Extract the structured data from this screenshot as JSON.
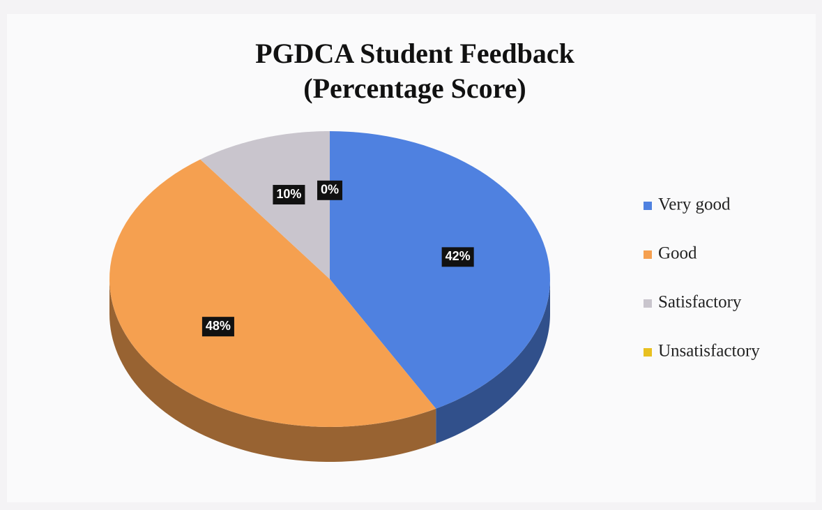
{
  "chart_data": {
    "type": "pie",
    "title": "PGDCA Student Feedback",
    "subtitle": "(Percentage Score)",
    "categories": [
      "Very good",
      "Good",
      "Satisfactory",
      "Unsatisfactory"
    ],
    "values": [
      42,
      48,
      10,
      0
    ],
    "value_labels": [
      "42%",
      "48%",
      "10%",
      "0%"
    ],
    "colors": [
      "#4f81e0",
      "#f5a050",
      "#c9c5cd",
      "#e8c020"
    ],
    "legend": "right"
  }
}
